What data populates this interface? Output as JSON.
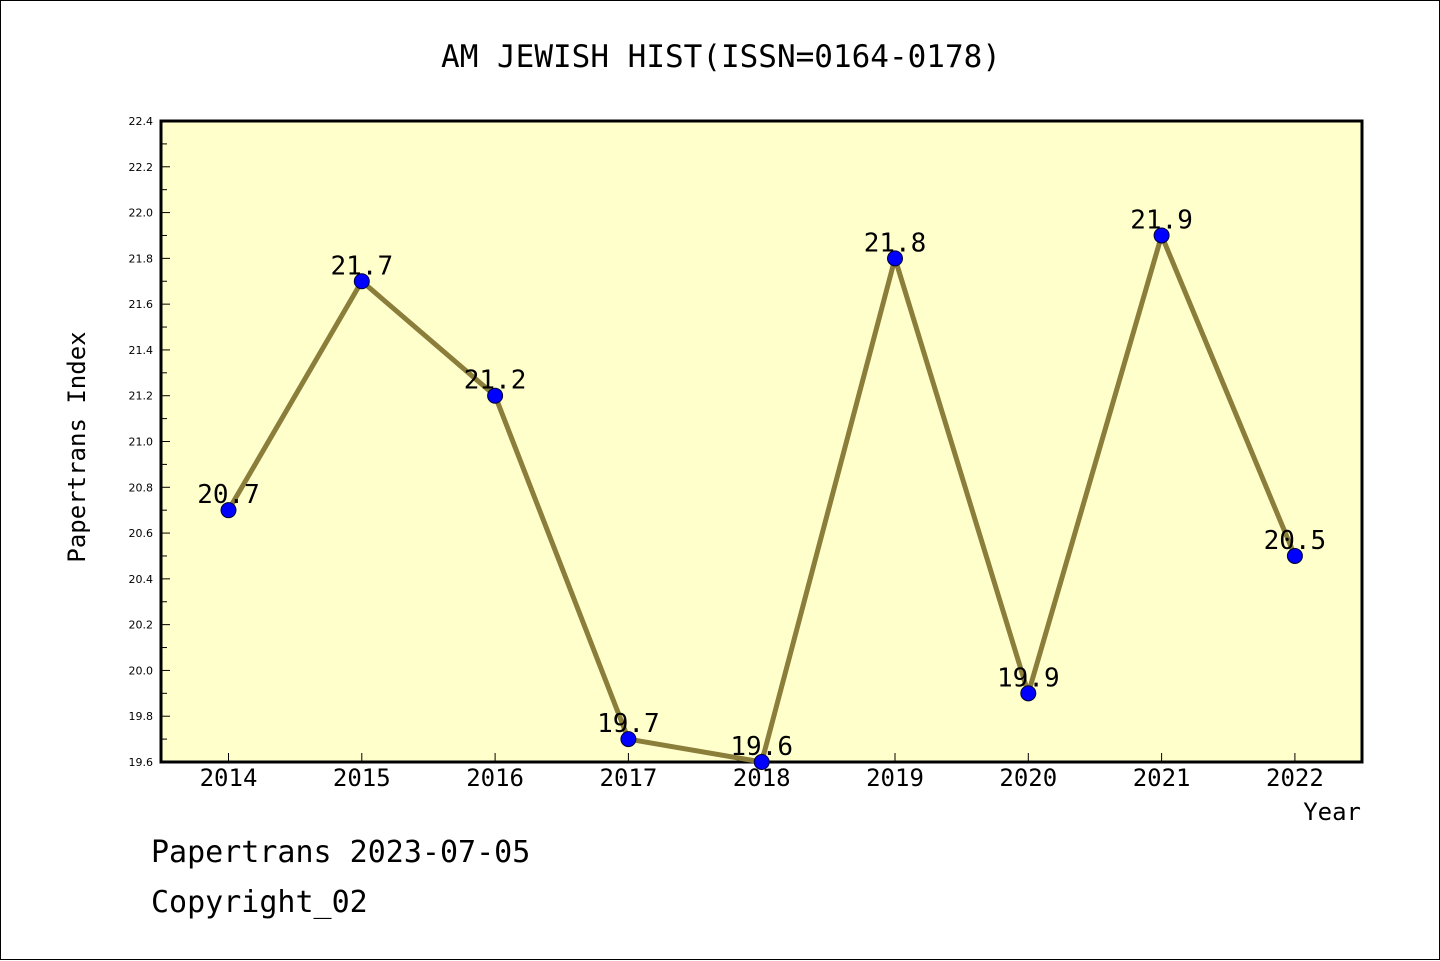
{
  "chart_data": {
    "type": "line",
    "title": "AM JEWISH HIST(ISSN=0164-0178)",
    "xlabel": "Year",
    "ylabel": "Papertrans Index",
    "categories": [
      "2014",
      "2015",
      "2016",
      "2017",
      "2018",
      "2019",
      "2020",
      "2021",
      "2022"
    ],
    "values": [
      20.7,
      21.7,
      21.2,
      19.7,
      19.6,
      21.8,
      19.9,
      21.9,
      20.5
    ],
    "data_labels": [
      "20.7",
      "21.7",
      "21.2",
      "19.7",
      "19.6",
      "21.8",
      "19.9",
      "21.9",
      "20.5"
    ],
    "ylim": [
      19.6,
      22.4
    ],
    "yticks": [
      "19.6",
      "19.8",
      "20.0",
      "20.2",
      "20.4",
      "20.6",
      "20.8",
      "21.0",
      "21.2",
      "21.4",
      "21.6",
      "21.8",
      "22.0",
      "22.2",
      "22.4"
    ],
    "grid": false,
    "legend": "none",
    "colors": {
      "plot_background": "#ffffcc",
      "line": "#8b7d3a",
      "marker": "#0000ff",
      "axes": "#000000"
    }
  },
  "footer": {
    "line1": "Papertrans 2023-07-05",
    "line2": "Copyright_02"
  }
}
